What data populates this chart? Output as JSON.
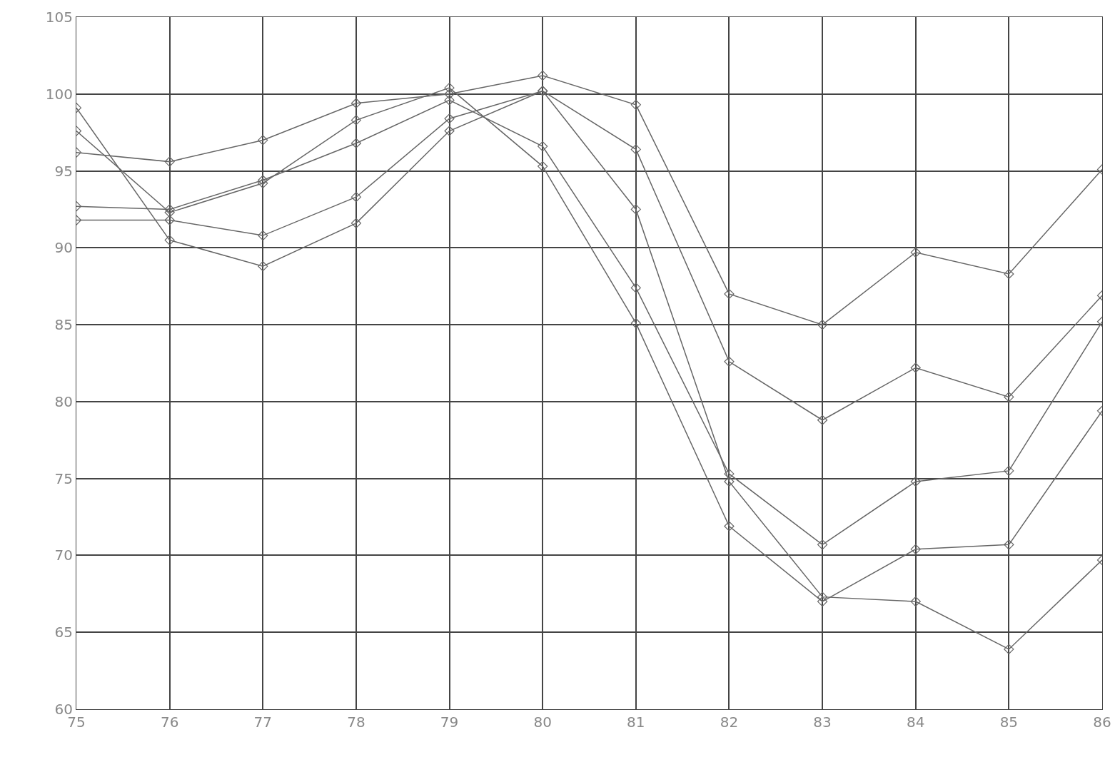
{
  "chart_data": {
    "type": "line",
    "x": [
      75,
      76,
      77,
      78,
      79,
      80,
      81,
      82,
      83,
      84,
      85,
      86
    ],
    "series": [
      {
        "color": "#666666",
        "values": [
          96.2,
          95.6,
          97.0,
          99.4,
          100.0,
          101.2,
          99.3,
          87.0,
          85.0,
          89.7,
          88.3,
          95.1
        ]
      },
      {
        "color": "#666666",
        "values": [
          92.7,
          92.5,
          94.4,
          96.8,
          99.6,
          96.6,
          87.4,
          75.3,
          70.7,
          74.8,
          75.5,
          85.2
        ]
      },
      {
        "color": "#666666",
        "values": [
          91.8,
          91.8,
          90.8,
          93.3,
          98.4,
          100.2,
          96.4,
          82.6,
          78.8,
          82.2,
          80.3,
          86.9
        ]
      },
      {
        "color": "#666666",
        "values": [
          99.1,
          90.5,
          88.8,
          91.6,
          97.6,
          100.2,
          92.5,
          74.8,
          67.3,
          67.0,
          63.9,
          69.7
        ]
      },
      {
        "color": "#666666",
        "values": [
          97.6,
          92.3,
          94.2,
          98.3,
          100.4,
          95.3,
          85.1,
          71.9,
          67.0,
          70.4,
          70.7,
          79.4
        ]
      }
    ],
    "xlim": [
      75,
      86
    ],
    "xticks": [
      75,
      76,
      77,
      78,
      79,
      80,
      81,
      82,
      83,
      84,
      85,
      86
    ],
    "ylim": [
      60,
      105
    ],
    "yticks": [
      60,
      65,
      70,
      75,
      80,
      85,
      90,
      95,
      100,
      105
    ],
    "grid": true,
    "marker": "diamond",
    "line_style": "solid"
  }
}
